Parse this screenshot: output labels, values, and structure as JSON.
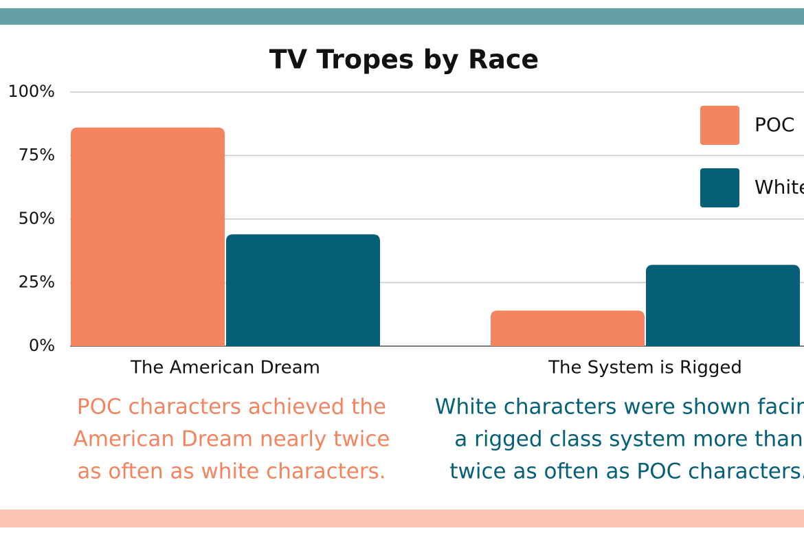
{
  "chart_data": {
    "type": "bar",
    "title": "TV Tropes by Race",
    "categories": [
      "The American Dream",
      "The System is Rigged"
    ],
    "series": [
      {
        "name": "POC",
        "color": "#f4845f",
        "values": [
          86,
          14
        ]
      },
      {
        "name": "White",
        "color": "#045f77",
        "values": [
          44,
          32
        ]
      }
    ],
    "ylim": [
      0,
      100
    ],
    "yticks": [
      {
        "value": 0,
        "label": "0%"
      },
      {
        "value": 25,
        "label": "25%"
      },
      {
        "value": 50,
        "label": "50%"
      },
      {
        "value": 75,
        "label": "75%"
      },
      {
        "value": 100,
        "label": "100%"
      }
    ],
    "grid": true,
    "legend": "top-right",
    "annotations": [
      {
        "color": "#f4845f",
        "lines": [
          "POC characters achieved the",
          "American Dream nearly twice",
          "as often as white characters."
        ]
      },
      {
        "color": "#045f77",
        "lines": [
          "White characters were shown facing",
          "a rigged class system more than",
          "twice as often as POC characters."
        ]
      }
    ]
  }
}
